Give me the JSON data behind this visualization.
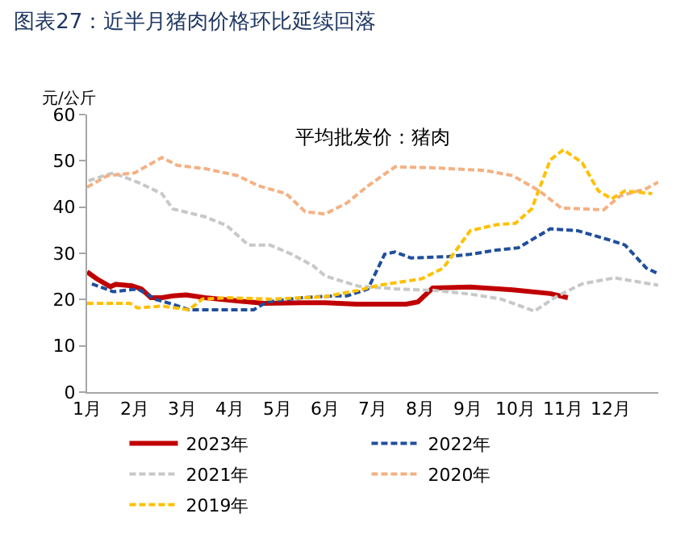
{
  "chart_data": {
    "type": "line",
    "title": "图表27：近半月猪肉价格环比延续回落",
    "subtitle": "平均批发价：猪肉",
    "ylabel": "元/公斤",
    "xlim": [
      1,
      13
    ],
    "xticks": [
      {
        "value": 1,
        "label": "1月"
      },
      {
        "value": 2,
        "label": "2月"
      },
      {
        "value": 3,
        "label": "3月"
      },
      {
        "value": 4,
        "label": "4月"
      },
      {
        "value": 5,
        "label": "5月"
      },
      {
        "value": 6,
        "label": "6月"
      },
      {
        "value": 7,
        "label": "7月"
      },
      {
        "value": 8,
        "label": "8月"
      },
      {
        "value": 9,
        "label": "9月"
      },
      {
        "value": 10,
        "label": "10月"
      },
      {
        "value": 11,
        "label": "11月"
      },
      {
        "value": 12,
        "label": "12月"
      }
    ],
    "ylim": [
      0,
      60
    ],
    "yticks": [
      0,
      10,
      20,
      30,
      40,
      50,
      60
    ],
    "grid": false,
    "legend": "bottom",
    "marker": "none",
    "series": [
      {
        "name": "2023年",
        "color": "#c00000",
        "line_style": "solid",
        "x": [
          1,
          1.2,
          1.49,
          1.6,
          1.94,
          2.14,
          2.34,
          2.57,
          2.8,
          3.08,
          3.48,
          4.16,
          4.73,
          5.52,
          6.0,
          6.66,
          7.7,
          7.95,
          8.26,
          9.05,
          9.94,
          10.73,
          11.1
        ],
        "values": [
          26,
          24.5,
          22.8,
          23.3,
          23,
          22.3,
          20.4,
          20.4,
          20.8,
          21,
          20.4,
          19.7,
          19.2,
          19.3,
          19.3,
          19,
          19,
          19.5,
          22.5,
          22.7,
          22.1,
          21.3,
          20.4
        ]
      },
      {
        "name": "2022年",
        "color": "#1f4e9c",
        "line_style": "dashed",
        "x": [
          1.1,
          1.55,
          2.06,
          2.45,
          2.8,
          3.14,
          3.7,
          4.5,
          4.78,
          5.52,
          6.2,
          6.46,
          6.9,
          7.25,
          7.47,
          7.8,
          8.6,
          9.05,
          9.6,
          10.06,
          10.73,
          11.3,
          11.97,
          12.3,
          12.75,
          13
        ],
        "values": [
          23.4,
          21.7,
          22.3,
          20,
          19,
          17.8,
          17.8,
          17.8,
          19.5,
          20.4,
          20.8,
          20.8,
          22.3,
          29.8,
          30.3,
          29,
          29.3,
          29.8,
          30.7,
          31.2,
          35.3,
          34.9,
          32.9,
          31.8,
          26.8,
          25.6
        ]
      },
      {
        "name": "2021年",
        "color": "#c8c8c8",
        "line_style": "dashed",
        "x": [
          1.03,
          1.55,
          2.1,
          2.57,
          2.8,
          3.48,
          3.93,
          4.39,
          4.84,
          5.3,
          5.75,
          6.0,
          6.7,
          7.5,
          8.26,
          9.05,
          9.7,
          10.4,
          10.85,
          11.4,
          12.08,
          13
        ],
        "values": [
          45.7,
          47.4,
          45.2,
          42.9,
          39.6,
          37.9,
          36,
          31.8,
          31.8,
          29.8,
          27.3,
          25.1,
          22.9,
          22.3,
          22,
          21.2,
          20.1,
          17.5,
          20.6,
          23.4,
          24.7,
          23.1
        ]
      },
      {
        "name": "2020年",
        "color": "#f4b183",
        "line_style": "dashed",
        "x": [
          1,
          1.43,
          2,
          2.57,
          2.9,
          3.48,
          4.16,
          4.6,
          5.18,
          5.58,
          6.0,
          6.46,
          6.9,
          7.47,
          8.26,
          9.38,
          9.94,
          10.5,
          10.96,
          11.85,
          12.2,
          12.75,
          13
        ],
        "values": [
          44.3,
          46.8,
          47.4,
          50.7,
          49,
          48.3,
          46.8,
          44.6,
          42.9,
          39,
          38.5,
          40.9,
          44.6,
          48.7,
          48.5,
          47.9,
          46.8,
          43.5,
          39.8,
          39.4,
          42.4,
          44,
          45.4
        ]
      },
      {
        "name": "2019年",
        "color": "#ffc000",
        "line_style": "dashed",
        "x": [
          1,
          1.9,
          2.06,
          2.57,
          3.14,
          3.42,
          3.93,
          4.84,
          5.98,
          6.7,
          7.13,
          8.03,
          8.48,
          9.05,
          9.6,
          10,
          10.34,
          10.73,
          11.01,
          11.4,
          11.74,
          12.02,
          12.3,
          12.87
        ],
        "values": [
          19.2,
          19.2,
          18.2,
          18.6,
          17.8,
          20.1,
          20.4,
          20.1,
          20.6,
          22,
          23.1,
          24.5,
          26.8,
          34.9,
          36.2,
          36.5,
          39.6,
          50.2,
          52.4,
          49.6,
          43.5,
          41.8,
          43.5,
          42.9
        ]
      }
    ]
  }
}
